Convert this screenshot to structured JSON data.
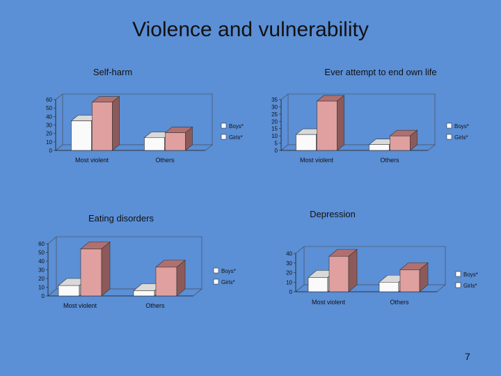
{
  "slide": {
    "title": "Violence and vulnerability",
    "page_number": "7"
  },
  "colors": {
    "background": "#5b8fd6",
    "boys_front": "#fafafa",
    "boys_top": "#d9d9d9",
    "boys_side": "#b3b3b3",
    "girls_front": "#e0a0a0",
    "girls_top": "#b07070",
    "girls_side": "#8c5a5a",
    "wall": "#5b8fd6"
  },
  "chart_data": [
    {
      "id": "self-harm",
      "type": "bar",
      "title": "Self-harm",
      "categories": [
        "Most violent",
        "Others"
      ],
      "series": [
        {
          "name": "Boys*",
          "values": [
            35,
            15
          ]
        },
        {
          "name": "Girls*",
          "values": [
            57,
            21
          ]
        }
      ],
      "yticks": [
        "0",
        "10",
        "20",
        "30",
        "40",
        "50",
        "60"
      ],
      "ylim": [
        0,
        60
      ],
      "legend": "right"
    },
    {
      "id": "suicide-attempt",
      "type": "bar",
      "title": "Ever attempt to end own life",
      "categories": [
        "Most violent",
        "Others"
      ],
      "series": [
        {
          "name": "Boys*",
          "values": [
            11,
            4
          ]
        },
        {
          "name": "Girls*",
          "values": [
            34,
            10
          ]
        }
      ],
      "yticks": [
        "0",
        "5",
        "10",
        "15",
        "20",
        "25",
        "30",
        "35"
      ],
      "ylim": [
        0,
        35
      ],
      "legend": "right"
    },
    {
      "id": "eating-disorders",
      "type": "bar",
      "title": "Eating disorders",
      "categories": [
        "Most violent",
        "Others"
      ],
      "series": [
        {
          "name": "Boys*",
          "values": [
            12,
            6
          ]
        },
        {
          "name": "Girls*",
          "values": [
            54,
            33
          ]
        }
      ],
      "yticks": [
        "0",
        "10",
        "20",
        "30",
        "40",
        "50",
        "60"
      ],
      "ylim": [
        0,
        60
      ],
      "legend": "right"
    },
    {
      "id": "depression",
      "type": "bar",
      "title": "Depression",
      "categories": [
        "Most violent",
        "Others"
      ],
      "series": [
        {
          "name": "Boys*",
          "values": [
            15,
            10
          ]
        },
        {
          "name": "Girls*",
          "values": [
            37,
            23
          ]
        }
      ],
      "yticks": [
        "0",
        "10",
        "20",
        "30",
        "40"
      ],
      "ylim": [
        0,
        40
      ],
      "legend": "right"
    }
  ]
}
